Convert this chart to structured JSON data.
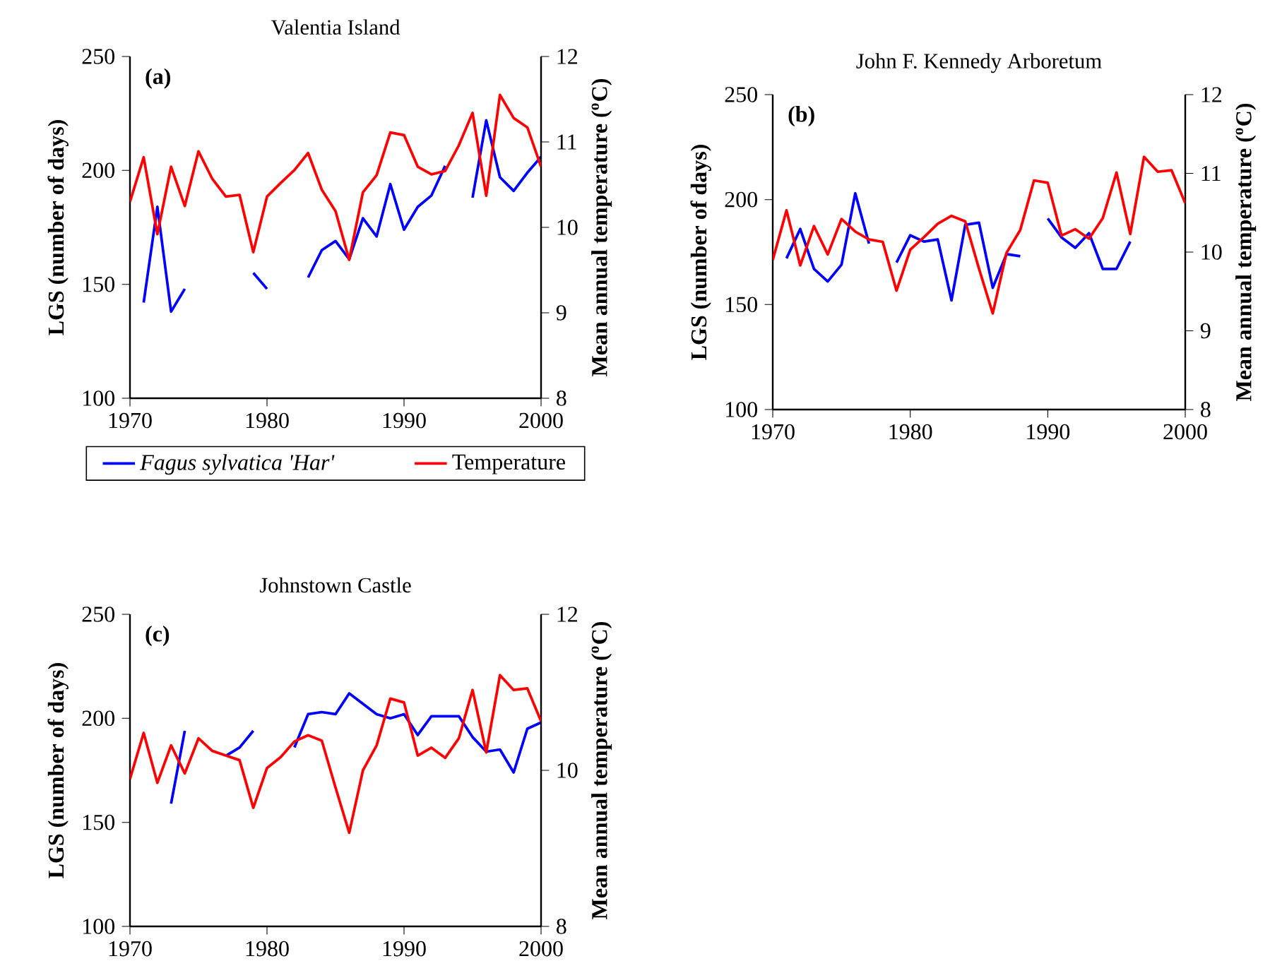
{
  "chart_data": [
    {
      "type": "line",
      "title": "Valentia Island",
      "ylabel": "LGS (number of days)",
      "y2label": "Mean annual temperature ($^{o}$C)",
      "annotations": [
        "(a)"
      ],
      "legend": "bottom",
      "x": [
        1970,
        1971,
        1972,
        1973,
        1974,
        1975,
        1976,
        1977,
        1978,
        1979,
        1980,
        1981,
        1982,
        1983,
        1984,
        1985,
        1986,
        1987,
        1988,
        1989,
        1990,
        1991,
        1992,
        1993,
        1994,
        1995,
        1996,
        1997,
        1998,
        1999,
        2000
      ],
      "series": [
        {
          "name": "Fagus sylvatica 'Har'",
          "color": "#0000ff",
          "values": [
            null,
            142,
            184,
            138,
            148,
            null,
            null,
            null,
            null,
            155,
            148,
            null,
            null,
            153,
            165,
            169,
            161,
            179,
            171,
            194,
            174,
            184,
            189,
            202,
            null,
            188,
            222,
            197,
            191,
            199,
            206
          ]
        },
        {
          "name": "Temperature",
          "color": "#ff0000",
          "axis": "y2",
          "values": [
            10.3,
            10.82,
            9.92,
            10.71,
            10.25,
            10.89,
            10.57,
            10.36,
            10.38,
            9.71,
            10.36,
            10.52,
            10.67,
            10.87,
            10.44,
            10.19,
            9.62,
            10.41,
            10.61,
            11.11,
            11.08,
            10.71,
            10.62,
            10.66,
            10.96,
            11.34,
            10.37,
            11.55,
            11.28,
            11.17,
            10.71
          ]
        }
      ],
      "xlim": [
        1970,
        2000
      ],
      "xticks": [
        1970,
        1980,
        1990,
        2000
      ],
      "ylim": [
        100,
        250
      ],
      "yticks": [
        100,
        150,
        200,
        250
      ],
      "y2lim": [
        8,
        12
      ],
      "y2ticks": [
        8,
        9,
        10,
        11,
        12
      ]
    },
    {
      "type": "line",
      "title": "John F. Kennedy Arboretum",
      "ylabel": "LGS (number of days)",
      "y2label": "Mean annual temperature ($^{o}$C)",
      "annotations": [
        "(b)"
      ],
      "x": [
        1970,
        1971,
        1972,
        1973,
        1974,
        1975,
        1976,
        1977,
        1978,
        1979,
        1980,
        1981,
        1982,
        1983,
        1984,
        1985,
        1986,
        1987,
        1988,
        1989,
        1990,
        1991,
        1992,
        1993,
        1994,
        1995,
        1996,
        1997,
        1998,
        1999,
        2000
      ],
      "series": [
        {
          "color": "#0000ff",
          "values": [
            null,
            172,
            186,
            167,
            161,
            169,
            203,
            179,
            null,
            170,
            183,
            180,
            181,
            152,
            188,
            189,
            158,
            174,
            173,
            null,
            191,
            182,
            177,
            184,
            167,
            167,
            180,
            null,
            null,
            null,
            null
          ]
        },
        {
          "color": "#ff0000",
          "axis": "y2",
          "values": [
            9.9,
            10.53,
            9.83,
            10.33,
            9.97,
            10.42,
            10.26,
            10.16,
            10.13,
            9.51,
            10.03,
            10.19,
            10.36,
            10.46,
            10.39,
            9.79,
            9.22,
            9.99,
            10.28,
            10.91,
            10.88,
            10.21,
            10.29,
            10.17,
            10.43,
            11.01,
            10.23,
            11.21,
            11.02,
            11.04,
            10.62
          ]
        }
      ],
      "xlim": [
        1970,
        2000
      ],
      "xticks": [
        1970,
        1980,
        1990,
        2000
      ],
      "ylim": [
        100,
        250
      ],
      "yticks": [
        100,
        150,
        200,
        250
      ],
      "y2lim": [
        8,
        12
      ],
      "y2ticks": [
        8,
        9,
        10,
        11,
        12
      ]
    },
    {
      "type": "line",
      "title": "Johnstown Castle",
      "ylabel": "LGS (number of days)",
      "y2label": "Mean annual temperature ($^{o}$C)",
      "annotations": [
        "(c)"
      ],
      "x": [
        1970,
        1971,
        1972,
        1973,
        1974,
        1975,
        1976,
        1977,
        1978,
        1979,
        1980,
        1981,
        1982,
        1983,
        1984,
        1985,
        1986,
        1987,
        1988,
        1989,
        1990,
        1991,
        1992,
        1993,
        1994,
        1995,
        1996,
        1997,
        1998,
        1999,
        2000
      ],
      "series": [
        {
          "color": "#0000ff",
          "values": [
            null,
            null,
            null,
            159,
            194,
            null,
            null,
            182,
            186,
            194,
            null,
            null,
            186,
            202,
            203,
            202,
            212,
            207,
            202,
            200,
            202,
            192,
            201,
            201,
            201,
            191,
            184,
            185,
            174,
            195,
            198
          ]
        },
        {
          "color": "#ff0000",
          "axis": "y2",
          "values": [
            9.89,
            10.48,
            9.84,
            10.32,
            9.96,
            10.41,
            10.25,
            10.19,
            10.13,
            9.52,
            10.03,
            10.17,
            10.37,
            10.45,
            10.38,
            9.78,
            9.2,
            10.0,
            10.32,
            10.92,
            10.87,
            10.19,
            10.29,
            10.16,
            10.41,
            11.03,
            10.23,
            11.22,
            11.03,
            11.05,
            10.63
          ]
        }
      ],
      "xlim": [
        1970,
        2000
      ],
      "xticks": [
        1970,
        1980,
        1990,
        2000
      ],
      "ylim": [
        100,
        250
      ],
      "yticks": [
        100,
        150,
        200,
        250
      ],
      "y2lim": [
        8,
        12
      ],
      "y2ticks": [
        8,
        10,
        12
      ]
    }
  ]
}
